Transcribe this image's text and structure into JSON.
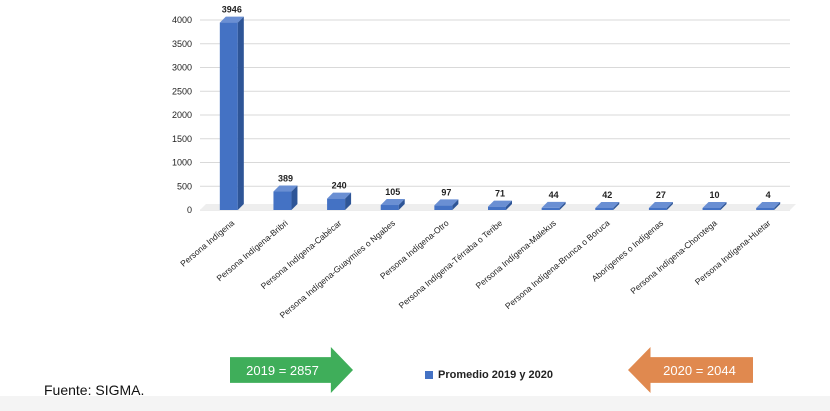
{
  "chart_data": {
    "type": "bar",
    "categories": [
      "Persona Indígena",
      "Persona Indígena-Bribri",
      "Persona Indígena-Cabécar",
      "Persona Indígena-Guaymíes o Ngabes",
      "Persona Indígena-Otro",
      "Persona Indígena-Térraba o Teribe",
      "Persona Indígena-Malekus",
      "Persona Indígena-Brunca o Boruca",
      "Aborígenes o Indígenas",
      "Persona Indígena-Chorotega",
      "Persona Indígena-Huetar"
    ],
    "series": [
      {
        "name": "Promedio 2019 y 2020",
        "values": [
          3946,
          389,
          240,
          105,
          97,
          71,
          44,
          42,
          27,
          10,
          4
        ]
      }
    ],
    "ylim": [
      0,
      4000
    ],
    "yticks": [
      0,
      500,
      1000,
      1500,
      2000,
      2500,
      3000,
      3500,
      4000
    ],
    "grid": true,
    "legend_position": "bottom",
    "bar_color": "#4472c4"
  },
  "annotations": {
    "left_arrow_text": "2019 = 2857",
    "right_arrow_text": "2020 = 2044",
    "left_arrow_color": "#3fae5a",
    "right_arrow_color": "#e0894f"
  },
  "legend": {
    "label": "Promedio 2019 y 2020"
  },
  "source": "Fuente: SIGMA."
}
